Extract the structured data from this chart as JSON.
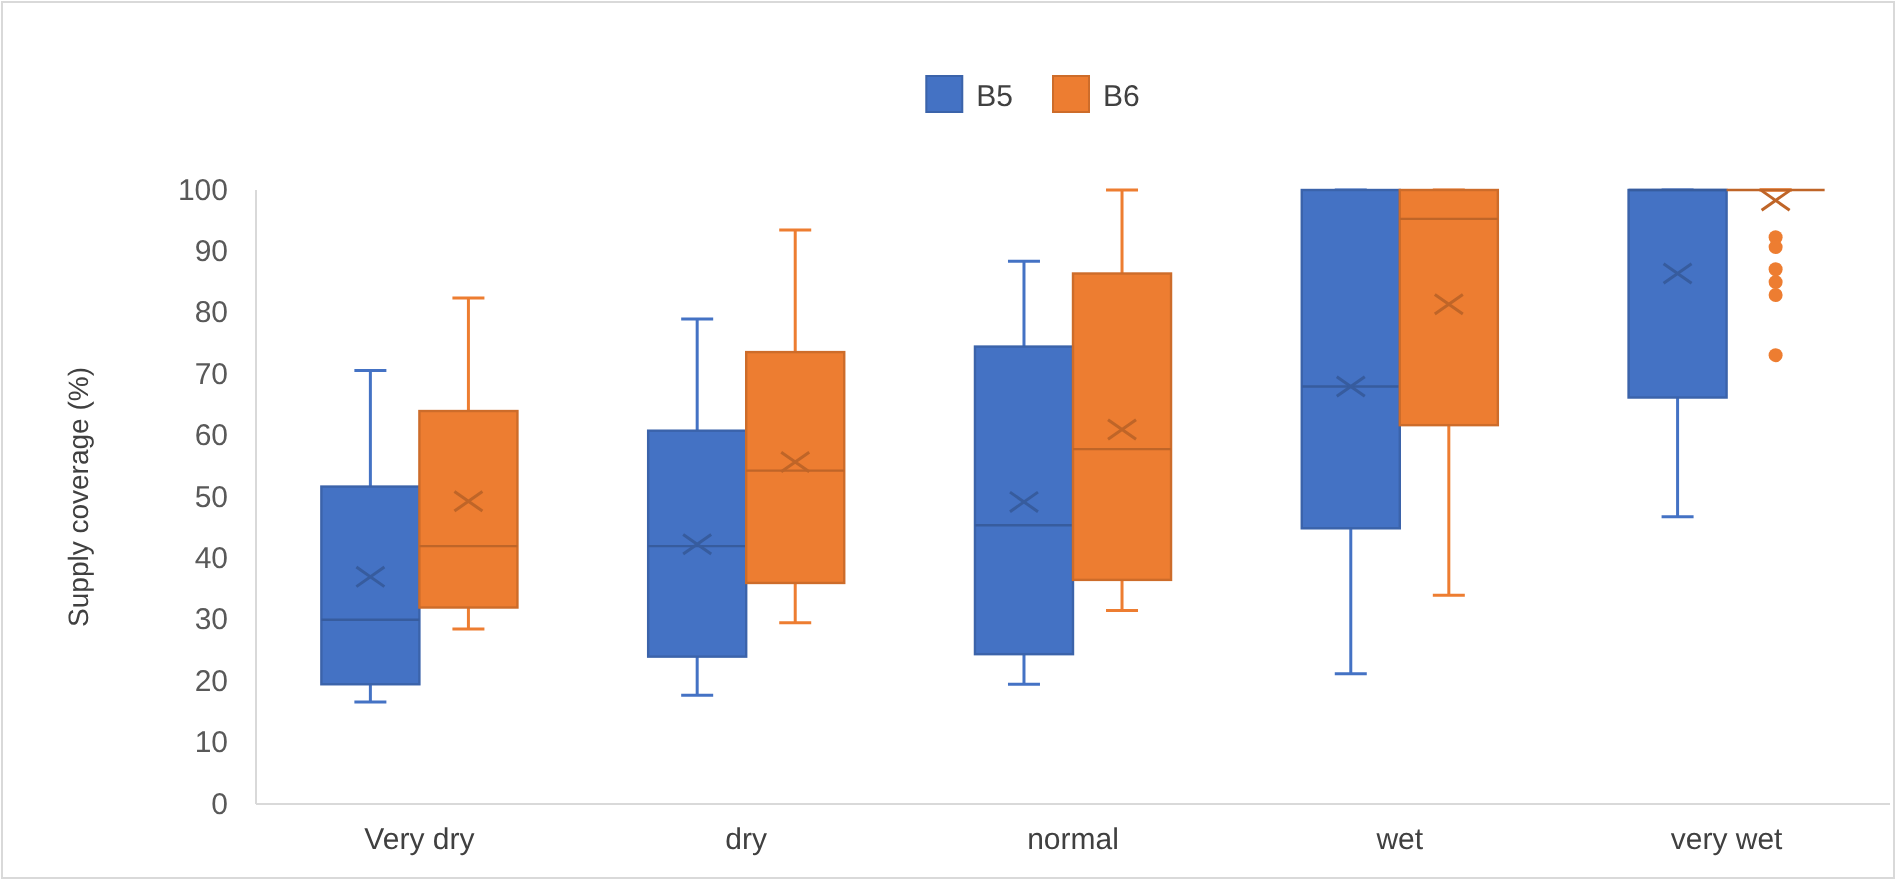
{
  "chart_data": {
    "type": "box",
    "ylabel": "Supply coverage (%)",
    "categories": [
      "Very dry",
      "dry",
      "normal",
      "wet",
      "very wet"
    ],
    "ylim": [
      0,
      100
    ],
    "yticks": [
      0,
      10,
      20,
      30,
      40,
      50,
      60,
      70,
      80,
      90,
      100
    ],
    "grid": false,
    "legend": "top",
    "series": [
      {
        "name": "B5",
        "color": "#4472c4",
        "boxes": [
          {
            "low": 16.6,
            "q1": 19.5,
            "median": 30,
            "q3": 51.7,
            "high": 70.6,
            "mean": 37
          },
          {
            "low": 17.7,
            "q1": 24,
            "median": 42,
            "q3": 60.8,
            "high": 79,
            "mean": 42.3
          },
          {
            "low": 19.5,
            "q1": 24.4,
            "median": 45.4,
            "q3": 74.5,
            "high": 88.4,
            "mean": 49.2
          },
          {
            "low": 21.2,
            "q1": 44.9,
            "median": 68,
            "q3": 100,
            "high": 100,
            "mean": 68
          },
          {
            "low": 46.8,
            "q1": 66.2,
            "median": 100,
            "q3": 100,
            "high": 100,
            "mean": 86.4
          }
        ]
      },
      {
        "name": "B6",
        "color": "#ed7d31",
        "boxes": [
          {
            "low": 28.5,
            "q1": 32,
            "median": 42,
            "q3": 64,
            "high": 82.4,
            "mean": 49.3
          },
          {
            "low": 29.5,
            "q1": 36,
            "median": 54.3,
            "q3": 73.6,
            "high": 93.5,
            "mean": 55.7
          },
          {
            "low": 31.5,
            "q1": 36.5,
            "median": 57.8,
            "q3": 86.4,
            "high": 100,
            "mean": 61
          },
          {
            "low": 34,
            "q1": 61.7,
            "median": 95.3,
            "q3": 100,
            "high": 100,
            "mean": 81.4
          },
          {
            "low": 100,
            "q1": 100,
            "median": 100,
            "q3": 100,
            "high": 100,
            "mean": 98.3,
            "outliers": [
              92.3,
              90.7,
              87.1,
              85,
              82.9,
              73.1
            ]
          }
        ]
      }
    ]
  }
}
